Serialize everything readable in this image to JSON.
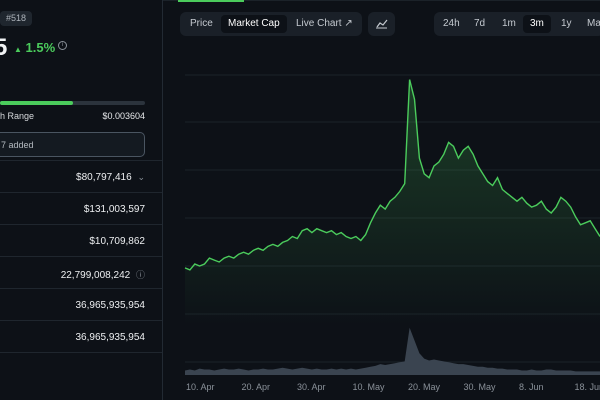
{
  "coin": {
    "rank": "#518",
    "price_partial": "5",
    "change": "1.5%",
    "change_color": "#4bcc5c"
  },
  "range": {
    "label": "h Range",
    "high": "$0.003604",
    "fill_fraction": 0.5
  },
  "watchlist": {
    "text": "7 added"
  },
  "stats": [
    {
      "value": "$80,797,416",
      "icon": "chevron-down-icon"
    },
    {
      "value": "$131,003,597"
    },
    {
      "value": "$10,709,862"
    },
    {
      "value": "22,799,008,242",
      "icon": "info-icon"
    },
    {
      "value": "36,965,935,954"
    },
    {
      "value": "36,965,935,954"
    }
  ],
  "tabs": [
    {
      "label": "Price"
    },
    {
      "label": "Market Cap",
      "active": true
    },
    {
      "label": "Live Chart ↗"
    }
  ],
  "ranges": [
    {
      "label": "24h"
    },
    {
      "label": "7d"
    },
    {
      "label": "1m"
    },
    {
      "label": "3m",
      "active": true
    },
    {
      "label": "1y"
    },
    {
      "label": "Ma"
    }
  ],
  "chart_data": {
    "type": "line",
    "x_tick_labels": [
      "10. Apr",
      "20. Apr",
      "30. Apr",
      "10. May",
      "20. May",
      "30. May",
      "8. Jun",
      "18. Jun"
    ],
    "line_color": "#4bcc5c",
    "grid": true,
    "series": [
      {
        "values": [
          24,
          23,
          26,
          25,
          26,
          29,
          28,
          27,
          29,
          30,
          29,
          31,
          32,
          31,
          33,
          34,
          33,
          35,
          36,
          35,
          37,
          38,
          40,
          39,
          43,
          44,
          42,
          44,
          43,
          42,
          43,
          41,
          42,
          40,
          39,
          40,
          38,
          41,
          47,
          52,
          56,
          54,
          58,
          60,
          63,
          67,
          120,
          110,
          80,
          72,
          70,
          76,
          78,
          82,
          88,
          86,
          80,
          84,
          86,
          82,
          76,
          72,
          68,
          66,
          70,
          64,
          62,
          60,
          58,
          60,
          57,
          55,
          56,
          58,
          54,
          52,
          55,
          60,
          58,
          55,
          50,
          46,
          47,
          48,
          44,
          40
        ]
      }
    ],
    "volume": [
      5,
      6,
      5,
      7,
      6,
      6,
      5,
      6,
      7,
      6,
      6,
      7,
      6,
      5,
      6,
      6,
      7,
      6,
      6,
      7,
      8,
      7,
      6,
      7,
      8,
      7,
      6,
      7,
      6,
      6,
      7,
      6,
      7,
      6,
      7,
      6,
      7,
      8,
      9,
      10,
      12,
      11,
      12,
      13,
      14,
      15,
      52,
      38,
      24,
      18,
      16,
      17,
      16,
      15,
      14,
      13,
      12,
      12,
      11,
      10,
      9,
      9,
      8,
      8,
      7,
      7,
      6,
      6,
      6,
      5,
      5,
      6,
      5,
      5,
      6,
      6,
      5,
      5,
      5,
      5,
      4,
      4,
      4,
      4,
      4,
      4
    ]
  }
}
